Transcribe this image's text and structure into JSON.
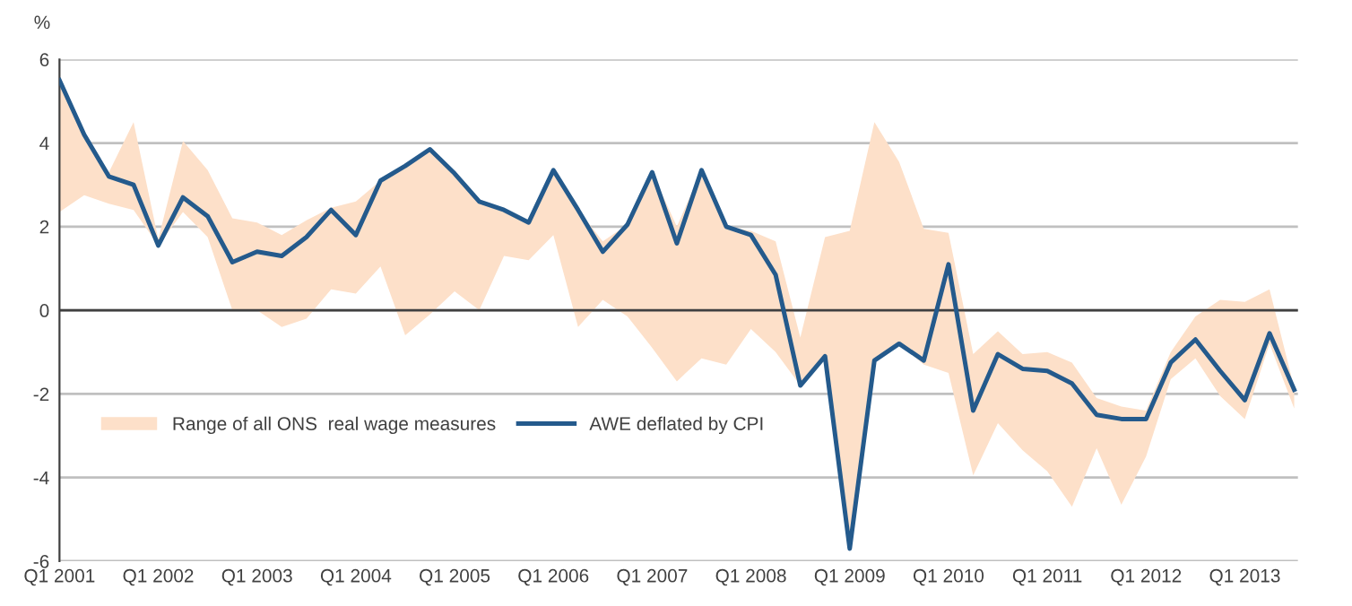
{
  "chart_data": {
    "type": "line",
    "ylabel": "%",
    "categories": [
      "Q1 2001",
      null,
      null,
      null,
      "Q1 2002",
      null,
      null,
      null,
      "Q1 2003",
      null,
      null,
      null,
      "Q1 2004",
      null,
      null,
      null,
      "Q1 2005",
      null,
      null,
      null,
      "Q1 2006",
      null,
      null,
      null,
      "Q1 2007",
      null,
      null,
      null,
      "Q1 2008",
      null,
      null,
      null,
      "Q1 2009",
      null,
      null,
      null,
      "Q1 2010",
      null,
      null,
      null,
      "Q1 2011",
      null,
      null,
      null,
      "Q1 2012",
      null,
      null,
      null,
      "Q1 2013",
      null,
      null
    ],
    "series": [
      {
        "name": "Range of all ONS  real wage measures",
        "type": "line",
        "color": "#fde0c9",
        "values": [
          null,
          null,
          null,
          null,
          null,
          null,
          null,
          null,
          null,
          null,
          null,
          null,
          null,
          null,
          null,
          null,
          null,
          null,
          null,
          null,
          null,
          null,
          null,
          null,
          null,
          null,
          null,
          null,
          null,
          null,
          null,
          null,
          null,
          null,
          null,
          null,
          null,
          null,
          null,
          null,
          null,
          null,
          null,
          null,
          null,
          null,
          null,
          null,
          null,
          null,
          null
        ],
        "upper": [
          5.5,
          4.2,
          3.3,
          4.5,
          1.7,
          4.05,
          3.35,
          2.2,
          2.1,
          1.8,
          2.15,
          2.45,
          2.6,
          3.1,
          3.45,
          3.85,
          3.3,
          2.6,
          2.4,
          2.1,
          3.35,
          2.4,
          1.65,
          2.05,
          3.3,
          2.0,
          3.35,
          2.0,
          1.9,
          1.65,
          -0.65,
          1.75,
          1.9,
          4.5,
          3.55,
          1.95,
          1.85,
          -1.05,
          -0.5,
          -1.05,
          -1.0,
          -1.25,
          -2.1,
          -2.3,
          -2.4,
          -1.0,
          -0.15,
          0.25,
          0.2,
          0.5,
          -1.85
        ],
        "lower": [
          2.35,
          2.75,
          2.55,
          2.4,
          1.55,
          2.35,
          1.75,
          0.0,
          0.0,
          -0.4,
          -0.2,
          0.5,
          0.4,
          1.05,
          -0.6,
          -0.1,
          0.45,
          0.0,
          1.3,
          1.2,
          1.8,
          -0.4,
          0.25,
          -0.15,
          -0.9,
          -1.7,
          -1.15,
          -1.3,
          -0.45,
          -1.0,
          -1.8,
          -1.1,
          -5.7,
          -1.2,
          -0.8,
          -1.3,
          -1.5,
          -3.95,
          -2.7,
          -3.35,
          -3.85,
          -4.7,
          -3.3,
          -4.65,
          -3.5,
          -1.65,
          -1.15,
          -2.05,
          -2.6,
          -0.8,
          -2.35
        ]
      },
      {
        "name": "AWE deflated by CPI",
        "type": "line",
        "color": "#245a8c",
        "values": [
          5.5,
          4.2,
          3.2,
          3.0,
          1.55,
          2.7,
          2.25,
          1.15,
          1.4,
          1.3,
          1.75,
          2.4,
          1.8,
          3.1,
          3.45,
          3.85,
          3.27,
          2.6,
          2.4,
          2.1,
          3.35,
          2.4,
          1.4,
          2.05,
          3.3,
          1.6,
          3.35,
          2.0,
          1.8,
          0.85,
          -1.8,
          -1.1,
          -5.7,
          -1.2,
          -0.8,
          -1.2,
          1.1,
          -2.4,
          -1.05,
          -1.4,
          -1.45,
          -1.75,
          -2.5,
          -2.6,
          -2.6,
          -1.25,
          -0.7,
          -1.45,
          -2.15,
          -0.55,
          -1.9
        ]
      }
    ],
    "ylim": [
      -6,
      6
    ],
    "yticks": [
      -6,
      -4,
      -2,
      0,
      2,
      4,
      6
    ],
    "grid": "y",
    "legend": "bottom left",
    "line_style": "solid",
    "marker": "none",
    "ref_lines": [
      {
        "axis": "y",
        "value": 0,
        "color": "#404040"
      }
    ]
  }
}
